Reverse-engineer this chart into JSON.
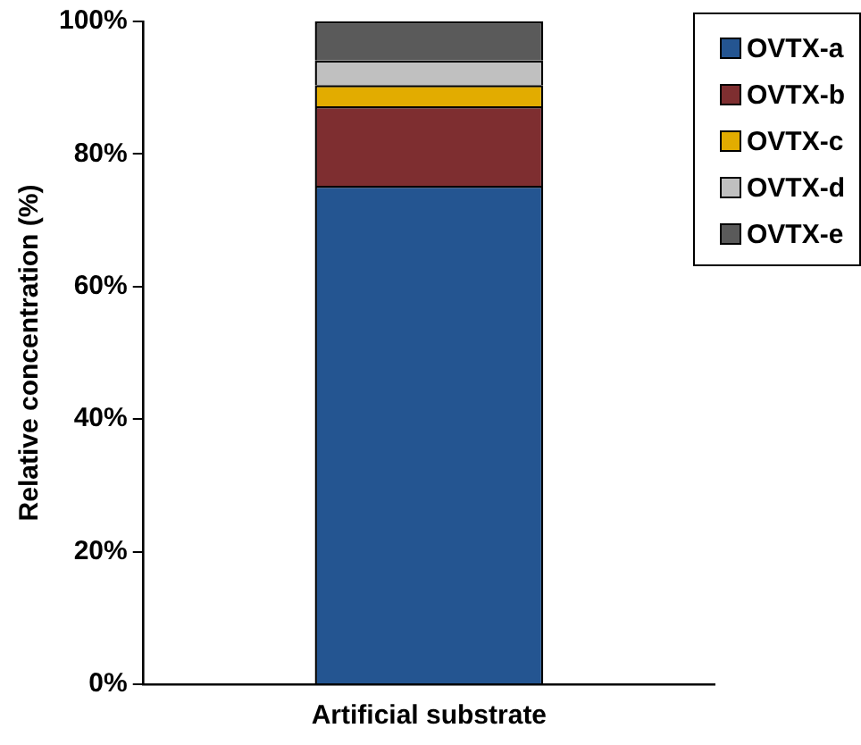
{
  "chart_data": {
    "type": "bar",
    "stacked": true,
    "ylabel": "Relative concentration (%)",
    "categories": [
      "Artificial substrate"
    ],
    "series": [
      {
        "name": "OVTX-a",
        "color": "#245591",
        "values": [
          75.2
        ]
      },
      {
        "name": "OVTX-b",
        "color": "#7e2e30",
        "values": [
          12.0
        ]
      },
      {
        "name": "OVTX-c",
        "color": "#e2ac00",
        "values": [
          3.2
        ]
      },
      {
        "name": "OVTX-d",
        "color": "#c0c0c0",
        "values": [
          3.7
        ]
      },
      {
        "name": "OVTX-e",
        "color": "#5a5a5a",
        "values": [
          5.9
        ]
      }
    ],
    "ylim": [
      0,
      100
    ],
    "yticks": [
      {
        "value": 0,
        "label": "0%"
      },
      {
        "value": 20,
        "label": "20%"
      },
      {
        "value": 40,
        "label": "40%"
      },
      {
        "value": 60,
        "label": "60%"
      },
      {
        "value": 80,
        "label": "80%"
      },
      {
        "value": 100,
        "label": "100%"
      }
    ],
    "grid": false,
    "legend": "top right"
  }
}
